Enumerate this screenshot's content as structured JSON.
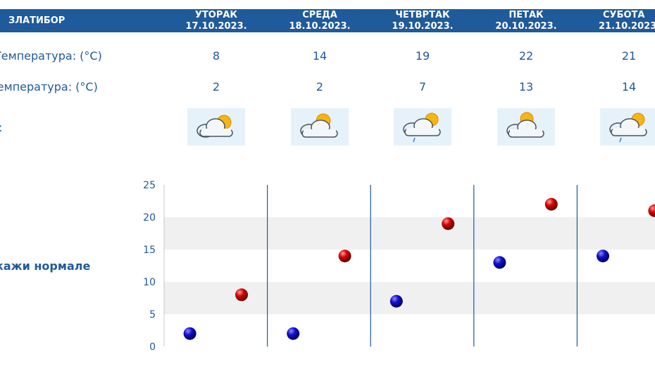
{
  "header": {
    "station": "ЗЛАТИБОР",
    "days": [
      {
        "name": "УТОРАК",
        "date": "17.10.2023."
      },
      {
        "name": "СРЕДА",
        "date": "18.10.2023."
      },
      {
        "name": "ЧЕТВРТАК",
        "date": "19.10.2023."
      },
      {
        "name": "ПЕТАК",
        "date": "20.10.2023."
      },
      {
        "name": "СУБОТА",
        "date": "21.10.2023."
      }
    ]
  },
  "rows": {
    "max_label": "Температура: (°C)",
    "min_label": "Температура: (°C)",
    "icon_label": ":"
  },
  "forecast_icons": [
    "partly-cloudy-icon",
    "partly-cloudy-icon",
    "partly-cloudy-rain-icon",
    "partly-cloudy-icon",
    "partly-cloudy-rain-icon"
  ],
  "normals_link": "кажи нормале",
  "colors": {
    "header_bg": "#1f5a9a",
    "text": "#1f5a9a",
    "min_dot": "#0a0aa8",
    "max_dot": "#c00000",
    "band": "#f0f0f0"
  },
  "chart_data": {
    "type": "scatter",
    "title": "",
    "xlabel": "",
    "ylabel": "",
    "categories": [
      "17.10.2023.",
      "18.10.2023.",
      "19.10.2023.",
      "20.10.2023.",
      "21.10.2023."
    ],
    "ylim": [
      0,
      25
    ],
    "yticks": [
      0,
      5,
      10,
      15,
      20,
      25
    ],
    "grid": "alternating horizontal bands, vertical day separators",
    "legend": "none",
    "series": [
      {
        "values": [
          2,
          2,
          7,
          13,
          14
        ],
        "color": "#0a0aa8"
      },
      {
        "values": [
          8,
          14,
          19,
          22,
          21
        ],
        "color": "#c00000"
      }
    ]
  }
}
